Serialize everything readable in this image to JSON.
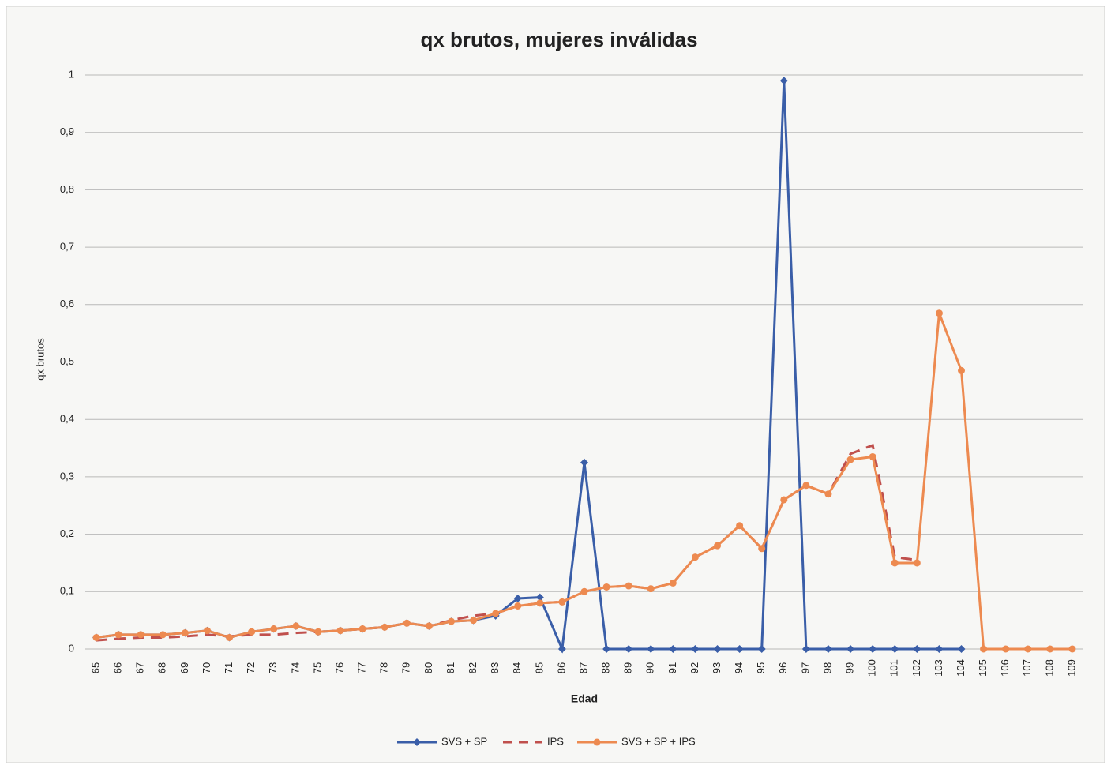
{
  "chart_data": {
    "type": "line",
    "title": "qx brutos, mujeres inválidas",
    "x_label": "Edad",
    "y_label": "qx brutos",
    "categories": [
      65,
      66,
      67,
      68,
      69,
      70,
      71,
      72,
      73,
      74,
      75,
      76,
      77,
      78,
      79,
      80,
      81,
      82,
      83,
      84,
      85,
      86,
      87,
      88,
      89,
      90,
      91,
      92,
      93,
      94,
      95,
      96,
      97,
      98,
      99,
      100,
      101,
      102,
      103,
      104,
      105,
      106,
      107,
      108,
      109
    ],
    "series": [
      {
        "name": "SVS + SP",
        "color": "#3a5ea8",
        "marker": "diamond",
        "dash": false,
        "values": [
          0.02,
          0.025,
          0.025,
          0.025,
          0.028,
          0.032,
          0.02,
          0.03,
          0.035,
          0.04,
          0.03,
          0.032,
          0.035,
          0.038,
          0.045,
          0.04,
          0.048,
          0.05,
          0.058,
          0.088,
          0.09,
          0,
          0.325,
          0,
          0,
          0,
          0,
          0,
          0,
          0,
          0,
          0.99,
          0,
          0,
          0,
          0,
          0,
          0,
          0,
          0,
          null,
          null,
          null,
          null,
          null
        ]
      },
      {
        "name": "IPS",
        "color": "#c0504d",
        "marker": "none",
        "dash": true,
        "values": [
          0.015,
          0.018,
          0.02,
          0.02,
          0.022,
          0.025,
          0.022,
          0.025,
          0.025,
          0.028,
          0.03,
          0.032,
          0.035,
          0.038,
          0.045,
          0.04,
          0.05,
          0.058,
          0.062,
          0.075,
          0.08,
          0.082,
          0.1,
          0.108,
          0.11,
          0.105,
          0.115,
          0.16,
          0.18,
          0.215,
          0.175,
          0.26,
          0.285,
          0.27,
          0.34,
          0.355,
          0.16,
          0.155,
          null,
          null,
          null,
          null,
          null,
          null,
          null
        ]
      },
      {
        "name": "SVS + SP + IPS",
        "color": "#ed8a50",
        "marker": "circle",
        "dash": false,
        "values": [
          0.02,
          0.025,
          0.025,
          0.025,
          0.028,
          0.032,
          0.02,
          0.03,
          0.035,
          0.04,
          0.03,
          0.032,
          0.035,
          0.038,
          0.045,
          0.04,
          0.048,
          0.05,
          0.062,
          0.075,
          0.08,
          0.082,
          0.1,
          0.108,
          0.11,
          0.105,
          0.115,
          0.16,
          0.18,
          0.215,
          0.175,
          0.26,
          0.285,
          0.27,
          0.33,
          0.335,
          0.15,
          0.15,
          0.585,
          0.485,
          0,
          0,
          0,
          0,
          0
        ]
      }
    ],
    "ylim": [
      0,
      1
    ],
    "yticks": [
      0,
      {
        "value": 0.1,
        "label": "0,1"
      },
      {
        "value": 0.2,
        "label": "0,2"
      },
      {
        "value": 0.3,
        "label": "0,3"
      },
      {
        "value": 0.4,
        "label": "0,4"
      },
      {
        "value": 0.5,
        "label": "0,5"
      },
      {
        "value": 0.6,
        "label": "0,6"
      },
      {
        "value": 0.7,
        "label": "0,7"
      },
      {
        "value": 0.8,
        "label": "0,8"
      },
      {
        "value": 0.9,
        "label": "0,9"
      },
      1
    ],
    "grid": true,
    "legend": "bottom"
  }
}
